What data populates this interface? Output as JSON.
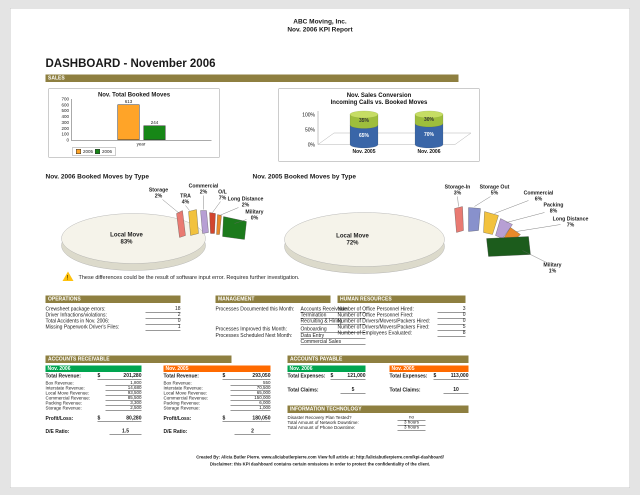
{
  "page": {
    "header_line1": "ABC Moving, Inc.",
    "header_line2": "Nov. 2006 KPI Report",
    "title": "DASHBOARD - November 2006",
    "footer_line1": "Created By: Alicia Butler Pierre.  www.aliciabutlerpierre.com   View full article at: http://aliciabutlerpierre.com/kpi-dashboard/",
    "footer_line2": "Disclaimer: this KPI dashboard contains certain omissions in order to protect the confidentiality of the client."
  },
  "colors": {
    "section_header": "#8e7f40",
    "green_header": "#00a550",
    "orange_header": "#ff6a00",
    "bar_2005": "#ffa428",
    "bar_2006": "#178717",
    "cylinder_blue": "#3a66a8",
    "cylinder_green": "#9ebe3c",
    "warning_yellow": "#ffc20e"
  },
  "sales": {
    "header": "SALES"
  },
  "warning_note": "These differences could be the result of software input error.  Requires further investigation.",
  "chart_data": [
    {
      "type": "bar",
      "title": "Nov. Total Booked Moves",
      "categories": [
        "year"
      ],
      "series": [
        {
          "name": "2005",
          "color": "#ffa428",
          "values": [
            613
          ]
        },
        {
          "name": "2006",
          "color": "#178717",
          "values": [
            244
          ]
        }
      ],
      "xlabel": "year",
      "ylabel": "",
      "ylim": [
        0,
        700
      ],
      "yticks": [
        0,
        100,
        200,
        300,
        400,
        500,
        600,
        700
      ],
      "legend_position": "bottom-left",
      "grid": false
    },
    {
      "type": "bar",
      "subtype": "100pct-stacked-3d-cylinder",
      "title": "Nov. Sales Conversion",
      "subtitle": "Incoming Calls vs. Booked Moves",
      "categories": [
        "Nov. 2005",
        "Nov. 2006"
      ],
      "series": [
        {
          "name": "Booked Moves",
          "color": "#3a66a8",
          "values": [
            65,
            70
          ],
          "labels": [
            "65%",
            "70%"
          ]
        },
        {
          "name": "Incoming Calls",
          "color": "#9ebe3c",
          "values": [
            35,
            30
          ],
          "labels": [
            "35%",
            "30%"
          ]
        }
      ],
      "yticks": [
        "0%",
        "50%",
        "100%"
      ],
      "ylim": [
        0,
        100
      ],
      "grid": false
    },
    {
      "type": "pie",
      "title": "Nov. 2006 Booked Moves by Type",
      "slices": [
        {
          "label": "Local Move",
          "pct": "83%",
          "value": 83,
          "color": "#f5f3ea"
        },
        {
          "label": "Storage",
          "pct": "2%",
          "value": 2,
          "color": "#e97a72"
        },
        {
          "label": "TRA",
          "pct": "4%",
          "value": 4,
          "color": "#f2c23e"
        },
        {
          "label": "Commercial",
          "pct": "2%",
          "value": 2,
          "color": "#b79fd4"
        },
        {
          "label": "O/L",
          "pct": "7%",
          "value": 7,
          "color": "#d2452e"
        },
        {
          "label": "Long Distance",
          "pct": "2%",
          "value": 2,
          "color": "#e8892a"
        },
        {
          "label": "Military",
          "pct": "0%",
          "value": 0,
          "color": "#1c7a1c"
        }
      ]
    },
    {
      "type": "pie",
      "title": "Nov. 2005 Booked Moves by Type",
      "slices": [
        {
          "label": "Local Move",
          "pct": "72%",
          "value": 72,
          "color": "#f5f3ea"
        },
        {
          "label": "Storage-In",
          "pct": "3%",
          "value": 3,
          "color": "#e97a72"
        },
        {
          "label": "Storage Out",
          "pct": "5%",
          "value": 5,
          "color": "#8891cc"
        },
        {
          "label": "Commercial",
          "pct": "6%",
          "value": 6,
          "color": "#f2c23e"
        },
        {
          "label": "Packing",
          "pct": "8%",
          "value": 8,
          "color": "#b79fd4"
        },
        {
          "label": "Long Distance",
          "pct": "7%",
          "value": 7,
          "color": "#e8892a"
        },
        {
          "label": "Military",
          "pct": "1%",
          "value": 1,
          "color": "#1c5c1c"
        }
      ]
    }
  ],
  "operations": {
    "header": "OPERATIONS",
    "rows": [
      {
        "label": "Crewsheet package errors:",
        "value": "18"
      },
      {
        "label": "Driver Infractions/violations:",
        "value": "2"
      },
      {
        "label": "Total Accidents in Nov. 2006:",
        "value": "0"
      },
      {
        "label": "Missing Paperwork Driver's Files:",
        "value": "1"
      }
    ]
  },
  "management": {
    "header": "MANAGEMENT",
    "rows": [
      {
        "label": "Processes Documented this Month:",
        "values": [
          "Accounts Receivable",
          "Termination",
          "Recruiting & Hiring"
        ]
      },
      {
        "label": "Processes Improved this Month:",
        "values": [
          "Onboarding"
        ]
      },
      {
        "label": "Processes Scheduled Next Month:",
        "values": [
          "Data Entry",
          "Commercial Sales"
        ]
      }
    ]
  },
  "human_resources": {
    "header": "HUMAN RESOURCES",
    "rows": [
      {
        "label": "Number of Office Personnel Hired:",
        "value": "3"
      },
      {
        "label": "Number of Office Personnel Fired:",
        "value": "0"
      },
      {
        "label": "Number of Drivers/Movers/Packers Hired:",
        "value": "0"
      },
      {
        "label": "Number of Drivers/Movers/Packers Fired:",
        "value": "5"
      },
      {
        "label": "Number of Employees Evaluated:",
        "value": "8"
      }
    ]
  },
  "accounts_receivable": {
    "header": "ACCOUNTS RECEIVABLE",
    "columns": [
      {
        "period": "Nov. 2006",
        "total_revenue_label": "Total Revenue:",
        "currency": "$",
        "total_revenue": "201,280",
        "rows": [
          {
            "label": "Box Revenue:",
            "value": "1,800"
          },
          {
            "label": "Interstate Revenue:",
            "value": "14,680"
          },
          {
            "label": "Local Move Revenue:",
            "value": "93,500"
          },
          {
            "label": "Commercial Revenue:",
            "value": "85,500"
          },
          {
            "label": "Packing Revenue:",
            "value": "3,300"
          },
          {
            "label": "Storage Revenue:",
            "value": "2,500"
          }
        ],
        "profit_loss_label": "Profit/Loss:",
        "profit_loss": "80,280",
        "de_ratio_label": "D/E Ratio:",
        "de_ratio": "1.5"
      },
      {
        "period": "Nov. 2005",
        "total_revenue_label": "Total Revenue:",
        "currency": "$",
        "total_revenue": "293,050",
        "rows": [
          {
            "label": "Box Revenue:",
            "value": "550"
          },
          {
            "label": "Interstate Revenue:",
            "value": "70,500"
          },
          {
            "label": "Local Move Revenue:",
            "value": "65,000"
          },
          {
            "label": "Commercial Revenue:",
            "value": "150,000"
          },
          {
            "label": "Packing Revenue:",
            "value": "6,000"
          },
          {
            "label": "Storage Revenue:",
            "value": "1,000"
          }
        ],
        "profit_loss_label": "Profit/Loss:",
        "profit_loss": "180,050",
        "de_ratio_label": "D/E Ratio:",
        "de_ratio": "2"
      }
    ]
  },
  "accounts_payable": {
    "header": "ACCOUNTS PAYABLE",
    "columns": [
      {
        "period": "Nov. 2006",
        "total_expenses_label": "Total Expenses:",
        "currency": "$",
        "total_expenses": "121,000",
        "total_claims_label": "Total Claims:",
        "total_claims": "5"
      },
      {
        "period": "Nov. 2005",
        "total_expenses_label": "Total Expenses:",
        "currency": "$",
        "total_expenses": "113,000",
        "total_claims_label": "Total Claims:",
        "total_claims": "10"
      }
    ]
  },
  "information_technology": {
    "header": "INFORMATION TECHNOLOGY",
    "rows": [
      {
        "label": "Disaster Recovery Plan Tested?",
        "value": "no"
      },
      {
        "label": "Total Amount of Network Downtime:",
        "value": "3 hours"
      },
      {
        "label": "Total Amount of Phone Downtime:",
        "value": "3 hours"
      }
    ]
  }
}
